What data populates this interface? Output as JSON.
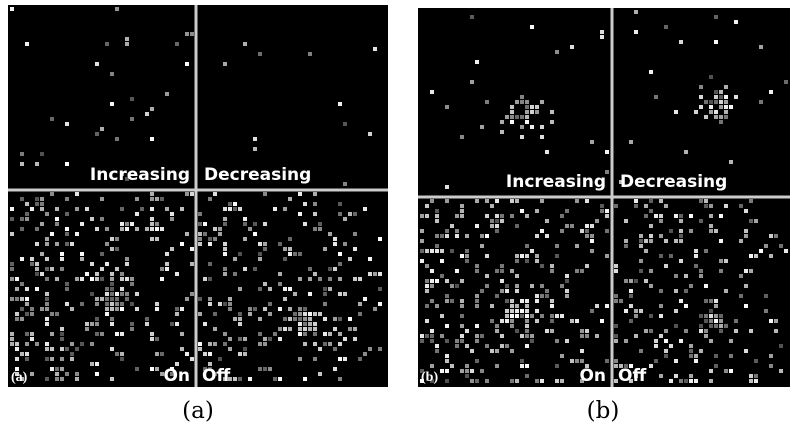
{
  "figures": [
    {
      "quadrants": [
        "Increasing",
        "Decreasing",
        "On",
        "Off"
      ],
      "panel_tag": "(a)",
      "caption": "(a)"
    },
    {
      "quadrants": [
        "Increasing",
        "Decreasing",
        "On",
        "Off"
      ],
      "panel_tag": "(b)",
      "caption": "(b)"
    }
  ]
}
